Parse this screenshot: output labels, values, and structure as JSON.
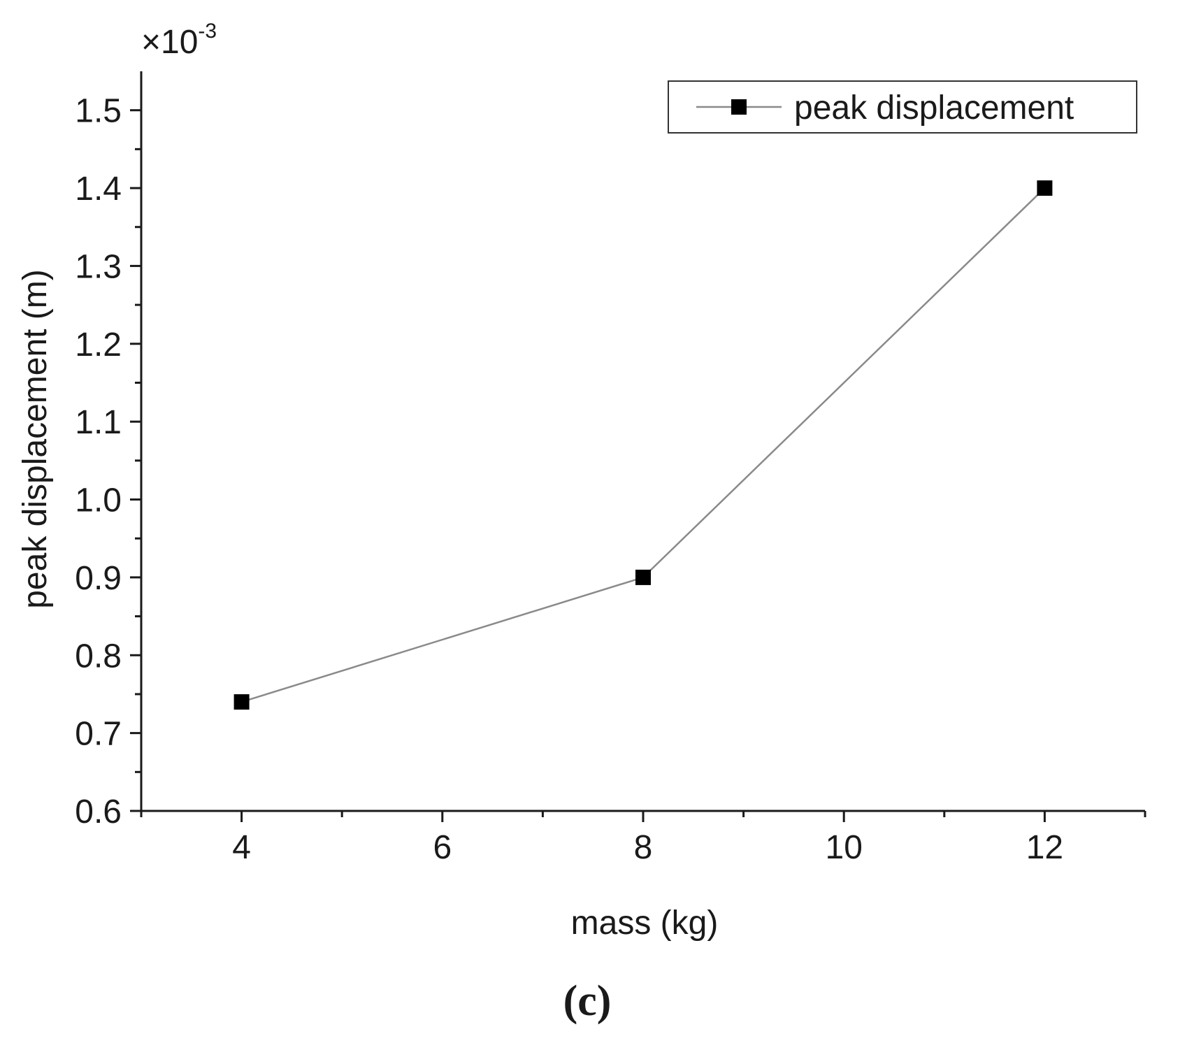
{
  "chart_data": {
    "type": "line",
    "title": "",
    "xlabel": "mass (kg)",
    "ylabel": "peak displacement (m)",
    "y_multiplier_label": "×10",
    "y_multiplier_exponent": "-3",
    "xlim": [
      3,
      13
    ],
    "ylim": [
      0.6,
      1.55
    ],
    "x_ticks": [
      4,
      6,
      8,
      10,
      12
    ],
    "x_tick_labels": [
      "4",
      "6",
      "8",
      "10",
      "12"
    ],
    "y_ticks": [
      0.6,
      0.7,
      0.8,
      0.9,
      1.0,
      1.1,
      1.2,
      1.3,
      1.4,
      1.5
    ],
    "y_tick_labels": [
      "0.6",
      "0.7",
      "0.8",
      "0.9",
      "1.0",
      "1.1",
      "1.2",
      "1.3",
      "1.4",
      "1.5"
    ],
    "grid": false,
    "legend_position": "top-right",
    "series": [
      {
        "name": "peak displacement",
        "marker": "square",
        "x": [
          4,
          8,
          12
        ],
        "values": [
          0.74,
          0.9,
          1.4
        ]
      }
    ],
    "colors": {
      "line": "#8a8a8a",
      "marker": "#000000",
      "axis": "#1a1a1a"
    }
  },
  "panel_label": "(c)"
}
